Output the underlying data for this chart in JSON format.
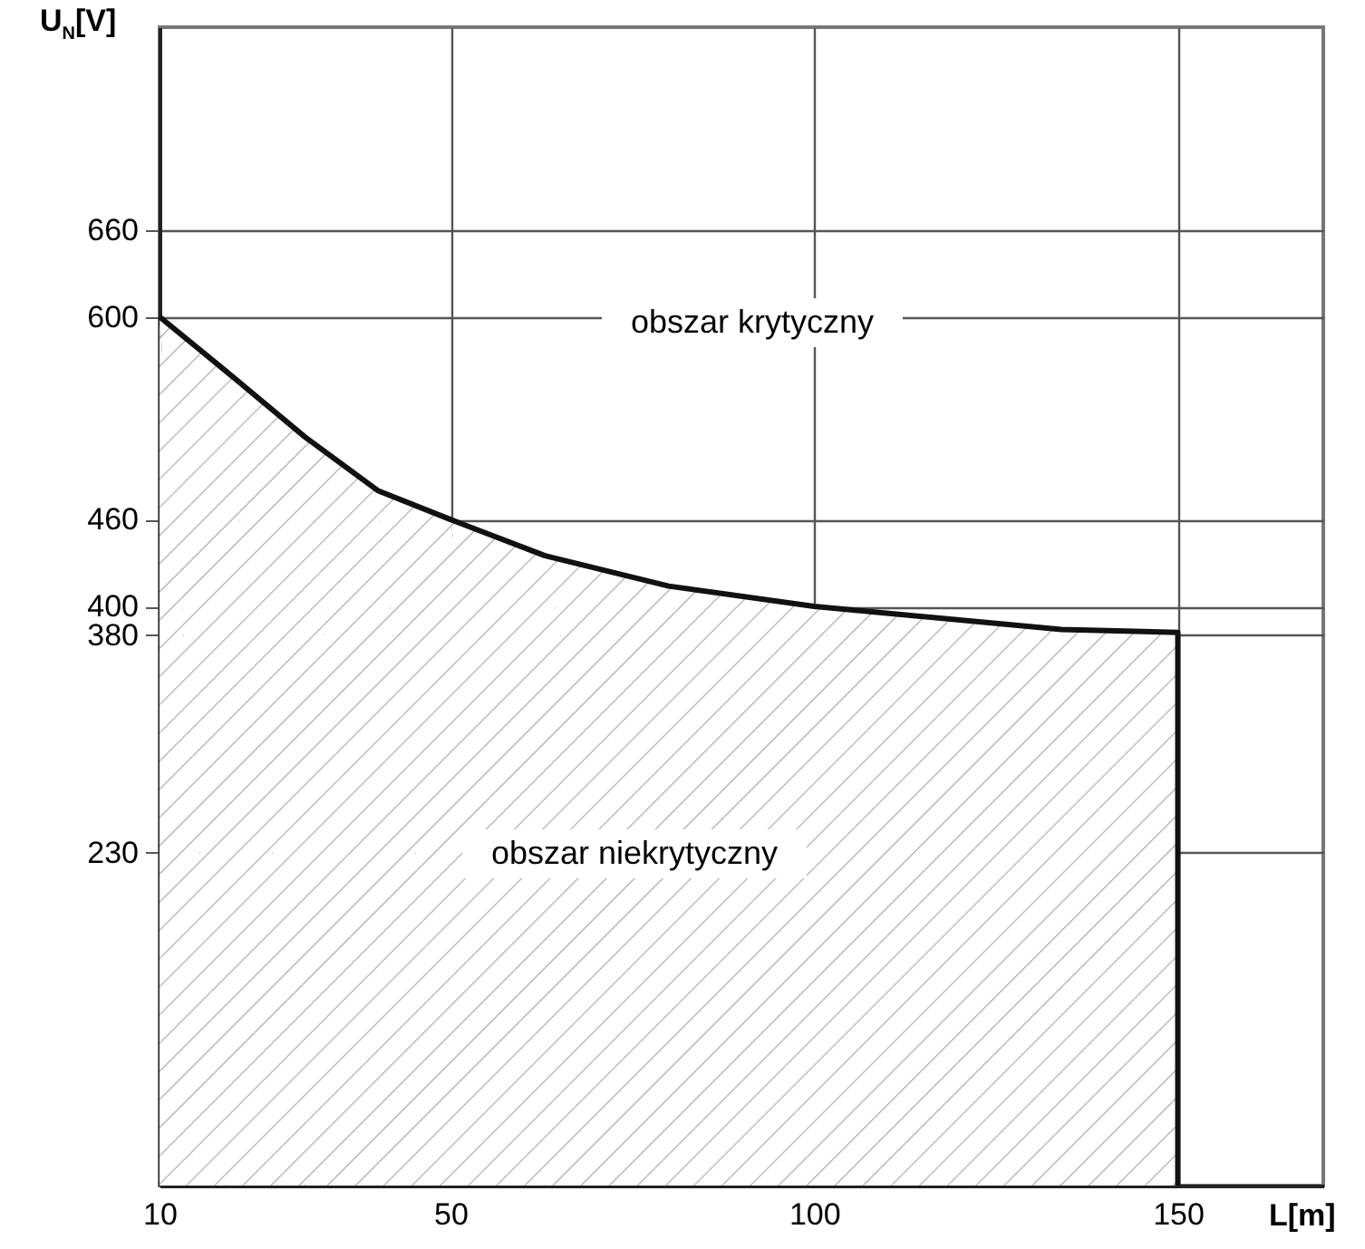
{
  "chart_data": {
    "type": "area",
    "xlabel": "L[m]",
    "ylabel": "U$_{N}$[V]",
    "x": [
      10,
      19,
      30,
      40,
      50,
      63,
      80,
      100,
      134,
      150,
      150
    ],
    "series": [
      {
        "color": "#111111",
        "values": [
          600,
          563,
          517,
          480,
          460,
          435,
          414,
          400,
          384,
          382,
          0
        ]
      }
    ],
    "xlim": [
      10,
      170
    ],
    "ylim": [
      0,
      800
    ],
    "xticks": [
      10,
      50,
      100,
      150
    ],
    "yticks": [
      230,
      380,
      400,
      460,
      600,
      660
    ],
    "grid": true,
    "annotations": [
      "obszar krytyczny",
      "obszar niekrytyczny"
    ]
  }
}
